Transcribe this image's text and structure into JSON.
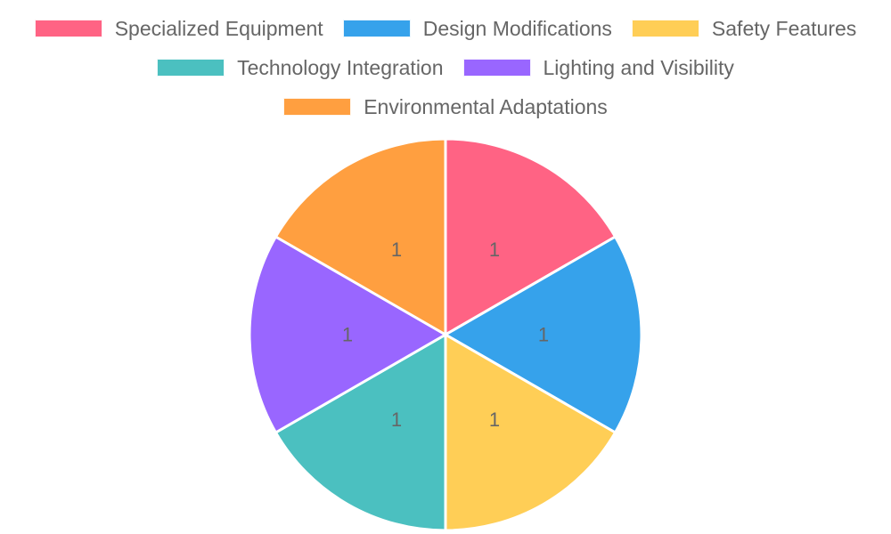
{
  "chart_data": {
    "type": "pie",
    "categories": [
      "Specialized Equipment",
      "Design Modifications",
      "Safety Features",
      "Technology Integration",
      "Lighting and Visibility",
      "Environmental Adaptations"
    ],
    "values": [
      1,
      1,
      1,
      1,
      1,
      1
    ],
    "colors": [
      "#FF6384",
      "#36A2EB",
      "#FFCE56",
      "#4BC0C0",
      "#9966FF",
      "#FF9F40"
    ],
    "data_labels": [
      "1",
      "1",
      "1",
      "1",
      "1",
      "1"
    ],
    "legend_position": "top",
    "title": ""
  }
}
